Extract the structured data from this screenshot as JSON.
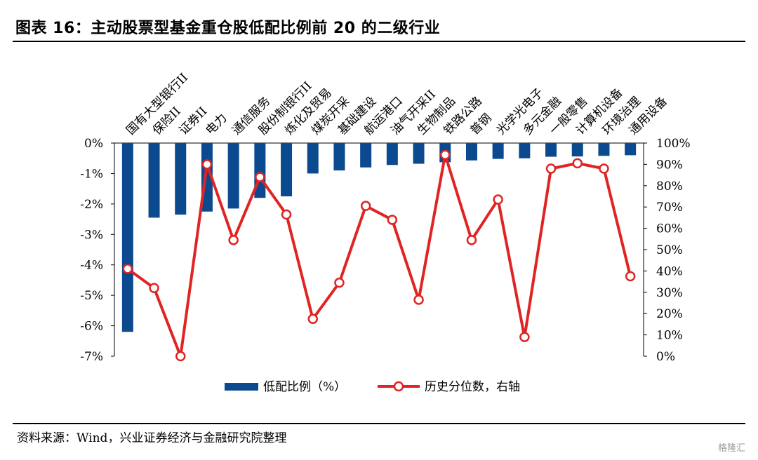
{
  "figure": {
    "title": "图表 16：主动股票型基金重仓股低配比例前 20 的二级行业",
    "source": "资料来源：Wind，兴业证券经济与金融研究院整理",
    "watermark": "格隆汇"
  },
  "colors": {
    "bar": "#0b4a8f",
    "line": "#e02424",
    "marker_fill": "#ffffff"
  },
  "chart_data": {
    "type": "bar+line",
    "categories": [
      "国有大型银行II",
      "保险II",
      "证券II",
      "电力",
      "通信服务",
      "股份制银行II",
      "炼化及贸易",
      "煤炭开采",
      "基础建设",
      "航运港口",
      "油气开采II",
      "生物制品",
      "铁路公路",
      "普钢",
      "光学光电子",
      "多元金融",
      "一般零售",
      "计算机设备",
      "环境治理",
      "通用设备"
    ],
    "series": [
      {
        "name": "低配比例（%）",
        "type": "bar",
        "axis": "left",
        "values": [
          -6.2,
          -2.45,
          -2.35,
          -2.25,
          -2.15,
          -1.8,
          -1.75,
          -1.0,
          -0.9,
          -0.8,
          -0.72,
          -0.68,
          -0.63,
          -0.57,
          -0.52,
          -0.5,
          -0.45,
          -0.44,
          -0.42,
          -0.4
        ]
      },
      {
        "name": "历史分位数，右轴",
        "type": "line",
        "axis": "right",
        "values": [
          41,
          32,
          0,
          90,
          54.5,
          84,
          66.5,
          17.5,
          34.5,
          70.5,
          64,
          26.5,
          94.5,
          54.5,
          73.5,
          9,
          88,
          90.5,
          88,
          37.5
        ]
      }
    ],
    "left_axis": {
      "min": -7,
      "max": 0,
      "step": 1,
      "tick_labels": [
        "0%",
        "-1%",
        "-2%",
        "-3%",
        "-4%",
        "-5%",
        "-6%",
        "-7%"
      ]
    },
    "right_axis": {
      "min": 0,
      "max": 100,
      "step": 10,
      "tick_labels": [
        "100%",
        "90%",
        "80%",
        "70%",
        "60%",
        "50%",
        "40%",
        "30%",
        "20%",
        "10%",
        "0%"
      ]
    },
    "legend_position": "bottom"
  }
}
